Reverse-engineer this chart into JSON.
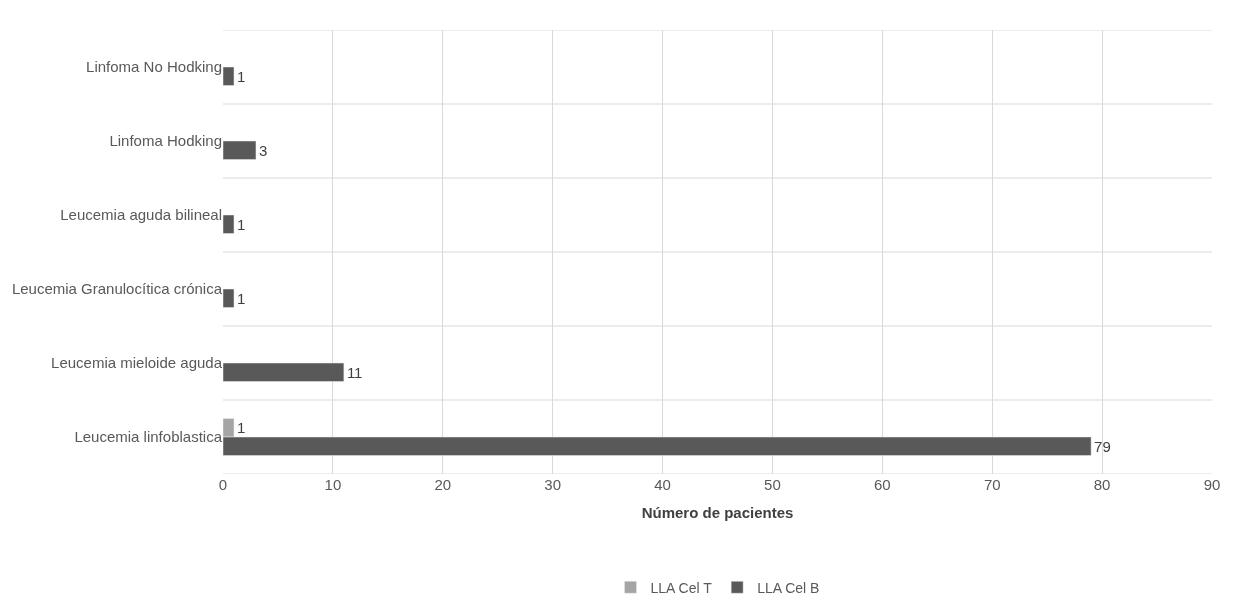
{
  "chart_data": {
    "type": "bar",
    "orientation": "horizontal",
    "xlabel": "Número de pacientes",
    "categories": [
      "Linfoma No Hodking",
      "Linfoma Hodking",
      "Leucemia aguda bilineal",
      "Leucemia Granulocítica crónica",
      "Leucemia mieloide aguda",
      "Leucemia linfoblastica"
    ],
    "series": [
      {
        "name": "LLA Cel T",
        "color": "#a5a5a5",
        "values": [
          null,
          null,
          null,
          null,
          null,
          1
        ]
      },
      {
        "name": "LLA Cel B",
        "color": "#595959",
        "values": [
          1,
          3,
          1,
          1,
          11,
          79
        ]
      }
    ],
    "xlim": [
      0,
      90
    ],
    "xticks": [
      0,
      10,
      20,
      30,
      40,
      50,
      60,
      70,
      80,
      90
    ],
    "grid": true,
    "legend": "bottom",
    "data_labels": true
  }
}
